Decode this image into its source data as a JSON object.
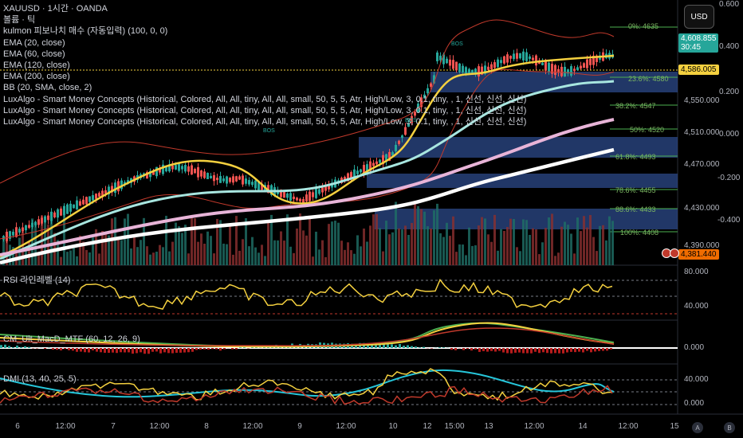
{
  "symbol_title": "XAUUSD · 1시간 · OANDA",
  "indicators": [
    "볼륨 · 틱",
    "kulmon 피보나치 매수 (자동입력) (100, 0, 0)",
    "EMA (20, close)",
    "EMA (60, close)",
    "EMA (120, close)",
    "EMA (200, close)",
    "BB (20, SMA, close, 2)",
    "LuxAlgo - Smart Money Concepts (Historical, Colored, All, All, tiny, All, All, small, 50, 5, 5, Atr, High/Low, 3, 0.1, tiny, , 1, 신선, 신선, 신선)",
    "LuxAlgo - Smart Money Concepts (Historical, Colored, All, All, tiny, All, All, small, 50, 5, 5, Atr, High/Low, 3, 0.1, tiny, , 1, 신선, 신선, 신선)",
    "LuxAlgo - Smart Money Concepts (Historical, Colored, All, All, tiny, All, All, small, 50, 5, 5, Atr, High/Low, 3, 0.1, tiny, , 1, 신선, 신선, 신선)"
  ],
  "currency_button": "USD",
  "price_axis": [
    "4,550.000",
    "4,510.000",
    "4,470.000",
    "4,430.000",
    "4,390.000"
  ],
  "left_axis": [
    "0.600",
    "0.400",
    "0.200",
    "0.000",
    "-0.200",
    "-0.400"
  ],
  "badges": {
    "current_price": "4,608.855",
    "countdown": "30:45",
    "ema_price": "4,586.005",
    "low_price": "4,381.440"
  },
  "fib_levels": [
    "0%: 4635",
    "23.6%: 4580",
    "38.2%: 4547",
    "50%: 4520",
    "61.8%: 4493",
    "78.6%: 4455",
    "88.6%: 4433",
    "100%: 4408"
  ],
  "bos_labels": [
    "BOS",
    "BOS",
    "BOS"
  ],
  "rsi_label": "RSI 라인레벨 (14)",
  "rsi_axis": [
    "80.000",
    "40.000"
  ],
  "macd_label": "CM_Ult_MacD_MTF (60, 12, 26, 9)",
  "macd_axis": [
    "0.000"
  ],
  "dmi_label": "DMI (13, 40, 25, 5)",
  "dmi_axis": [
    "40.000",
    "0.000"
  ],
  "time_axis": [
    "6",
    "12:00",
    "7",
    "12:00",
    "8",
    "12:00",
    "9",
    "12:00",
    "10",
    "12",
    "15:00",
    "13",
    "12:00",
    "14",
    "12:00",
    "15"
  ],
  "corner_buttons": [
    "A",
    "B"
  ],
  "colors": {
    "ema20": "#f4d03f",
    "ema60": "#a8e6e0",
    "ema120": "#e8b4d8",
    "ema200": "#ffffff",
    "bb": "#c0392b",
    "zone": "#2c4a8a",
    "up": "#26a69a",
    "down": "#ef5350",
    "fib": "#4caf50"
  }
}
